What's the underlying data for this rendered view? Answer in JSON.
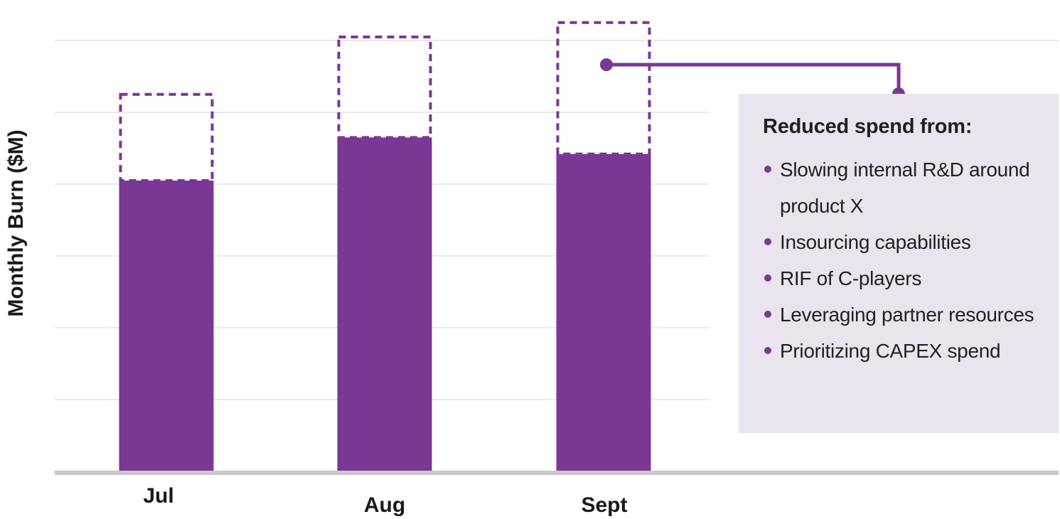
{
  "colors": {
    "bar": "#7b3794",
    "dashed_outline": "#7b3794",
    "grid": "#d4d4d4",
    "axis": "#c8c8c8",
    "callout_background": "#e9e4ee",
    "text": "#231f20"
  },
  "chart_data": {
    "type": "bar",
    "categories": [
      "Jul",
      "Aug",
      "Sept"
    ],
    "series": [
      {
        "values": [
          4.05,
          4.65,
          4.42
        ]
      },
      {
        "values": [
          1.2,
          1.4,
          1.83
        ]
      }
    ],
    "stacked": true,
    "xlabel": "",
    "ylabel": "Monthly Burn ($M)",
    "ylim": [
      0,
      6
    ],
    "grid": true
  },
  "callout": {
    "title": "Reduced spend from:",
    "items": [
      "Slowing internal R&D around product X",
      "Insourcing capabilities",
      "RIF of C-players",
      "Leveraging partner resources",
      "Prioritizing CAPEX spend"
    ]
  }
}
